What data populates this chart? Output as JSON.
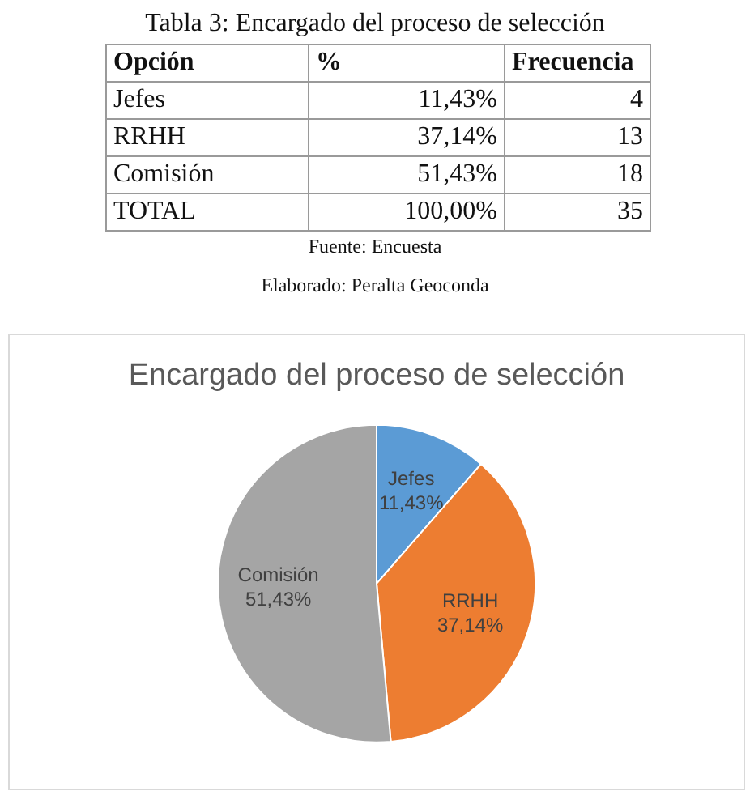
{
  "chart_data": [
    {
      "type": "other",
      "title": "Tabla 3: Encargado del proceso de selección",
      "ylabel": "Opción",
      "categories": [
        "Jefes",
        "RRHH",
        "Comisión",
        "TOTAL"
      ],
      "series": [
        {
          "name": "%",
          "values": [
            11.43,
            37.14,
            51.43,
            100
          ],
          "value_labels": [
            "11,43%",
            "37,14%",
            "51,43%",
            "100,00%"
          ]
        },
        {
          "name": "Frecuencia",
          "values": [
            4,
            13,
            18,
            35
          ]
        }
      ],
      "data_labels": true,
      "annotations": [
        "Fuente: Encuesta",
        "Elaborado: Peralta Geoconda"
      ]
    },
    {
      "type": "pie",
      "title": "Encargado del proceso de selección",
      "categories": [
        "Jefes",
        "RRHH",
        "Comisión"
      ],
      "values": [
        11.43,
        37.14,
        51.43
      ],
      "colors": [
        "#5b9bd5",
        "#ed7d31",
        "#a5a5a5"
      ],
      "value_labels": [
        "11,43%",
        "37,14%",
        "51,43%"
      ]
    }
  ]
}
